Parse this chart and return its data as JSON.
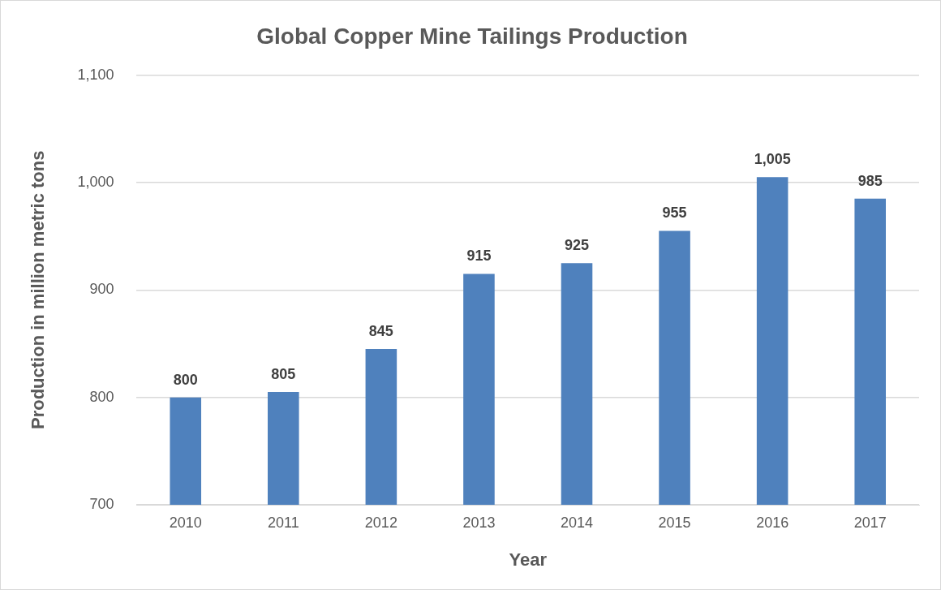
{
  "chart_data": {
    "type": "bar",
    "title": "Global Copper Mine Tailings Production",
    "xlabel": "Year",
    "ylabel": "Production in million metric tons",
    "categories": [
      "2010",
      "2011",
      "2012",
      "2013",
      "2014",
      "2015",
      "2016",
      "2017"
    ],
    "values": [
      800,
      805,
      845,
      915,
      925,
      955,
      1005,
      985
    ],
    "value_labels": [
      "800",
      "805",
      "845",
      "915",
      "925",
      "955",
      "1,005",
      "985"
    ],
    "color": "#4f81bd",
    "ylim": [
      700,
      1100
    ],
    "yticks": [
      700,
      800,
      900,
      {
        "value": 1000,
        "label": "1,000"
      },
      {
        "value": 1100,
        "label": "1,100"
      }
    ],
    "grid": "y",
    "legend": false
  }
}
